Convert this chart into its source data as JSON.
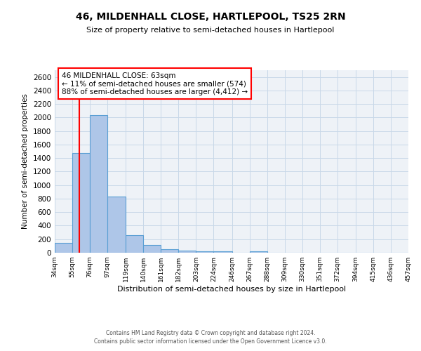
{
  "title": "46, MILDENHALL CLOSE, HARTLEPOOL, TS25 2RN",
  "subtitle": "Size of property relative to semi-detached houses in Hartlepool",
  "xlabel": "Distribution of semi-detached houses by size in Hartlepool",
  "ylabel": "Number of semi-detached properties",
  "bin_edges": [
    34,
    55,
    76,
    97,
    119,
    140,
    161,
    182,
    203,
    224,
    246,
    267,
    288,
    309,
    330,
    351,
    372,
    394,
    415,
    436,
    457
  ],
  "bar_values": [
    150,
    1470,
    2040,
    830,
    255,
    110,
    55,
    30,
    20,
    20,
    0,
    20,
    0,
    0,
    0,
    0,
    0,
    0,
    0,
    0
  ],
  "bar_color": "#aec6e8",
  "bar_edge_color": "#5a9fd4",
  "red_line_x": 63,
  "annotation_box_text": "46 MILDENHALL CLOSE: 63sqm\n← 11% of semi-detached houses are smaller (574)\n88% of semi-detached houses are larger (4,412) →",
  "annotation_box_color": "white",
  "annotation_box_edge_color": "red",
  "ylim": [
    0,
    2700
  ],
  "yticks": [
    0,
    200,
    400,
    600,
    800,
    1000,
    1200,
    1400,
    1600,
    1800,
    2000,
    2200,
    2400,
    2600
  ],
  "tick_labels": [
    "34sqm",
    "55sqm",
    "76sqm",
    "97sqm",
    "119sqm",
    "140sqm",
    "161sqm",
    "182sqm",
    "203sqm",
    "224sqm",
    "246sqm",
    "267sqm",
    "288sqm",
    "309sqm",
    "330sqm",
    "351sqm",
    "372sqm",
    "394sqm",
    "415sqm",
    "436sqm",
    "457sqm"
  ],
  "footer_line1": "Contains HM Land Registry data © Crown copyright and database right 2024.",
  "footer_line2": "Contains public sector information licensed under the Open Government Licence v3.0.",
  "grid_color": "#c8d8e8",
  "background_color": "#eef2f7"
}
